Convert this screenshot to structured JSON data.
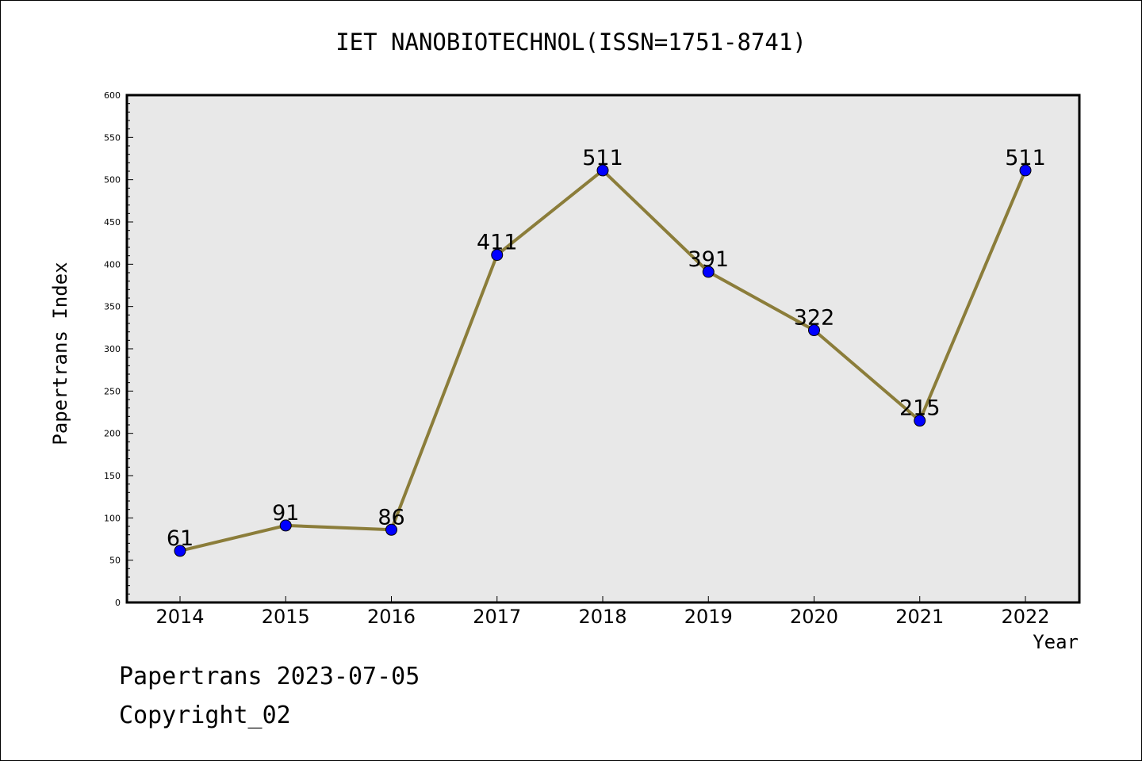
{
  "chart_data": {
    "type": "line",
    "title": "IET NANOBIOTECHNOL(ISSN=1751-8741)",
    "xlabel": "Year",
    "ylabel": "Papertrans Index",
    "categories": [
      "2014",
      "2015",
      "2016",
      "2017",
      "2018",
      "2019",
      "2020",
      "2021",
      "2022"
    ],
    "series": [
      {
        "values": [
          61,
          91,
          86,
          411,
          511,
          391,
          322,
          215,
          511
        ]
      }
    ],
    "ylim": [
      0,
      600
    ],
    "yticks": [
      0,
      50,
      100,
      150,
      200,
      250,
      300,
      350,
      400,
      450,
      500,
      550,
      600
    ],
    "grid": false,
    "colors": {
      "plot_background": "#e8e8e8",
      "line": "#8b7d3a",
      "marker": "#0000ff"
    }
  },
  "footer": {
    "line1": "Papertrans 2023-07-05",
    "line2": "Copyright_02"
  }
}
